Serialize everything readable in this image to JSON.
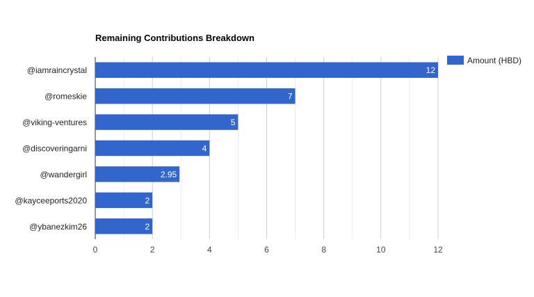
{
  "chart_data": {
    "type": "bar",
    "orientation": "horizontal",
    "title": "Remaining Contributions Breakdown",
    "xlabel": "",
    "ylabel": "",
    "categories": [
      "@iamraincrystal",
      "@romeskie",
      "@viking-ventures",
      "@discoveringarni",
      "@wandergirl",
      "@kayceeports2020",
      "@ybanezkim26"
    ],
    "series": [
      {
        "name": "Amount (HBD)",
        "values": [
          12,
          7,
          5,
          4,
          2.95,
          2,
          2
        ],
        "data_labels": [
          "12",
          "7",
          "5",
          "4",
          "2.95",
          "2",
          "2"
        ]
      }
    ],
    "xlim": [
      0,
      12
    ],
    "x_ticks": [
      0,
      2,
      4,
      6,
      8,
      10,
      12
    ],
    "grid": true,
    "legend_position": "right",
    "colors": {
      "bar": "#3366cc",
      "grid": "#cccccc",
      "minor_grid": "#ebebeb",
      "text": "#222222",
      "axis_text": "#444444",
      "data_label": "#ffffff"
    }
  }
}
